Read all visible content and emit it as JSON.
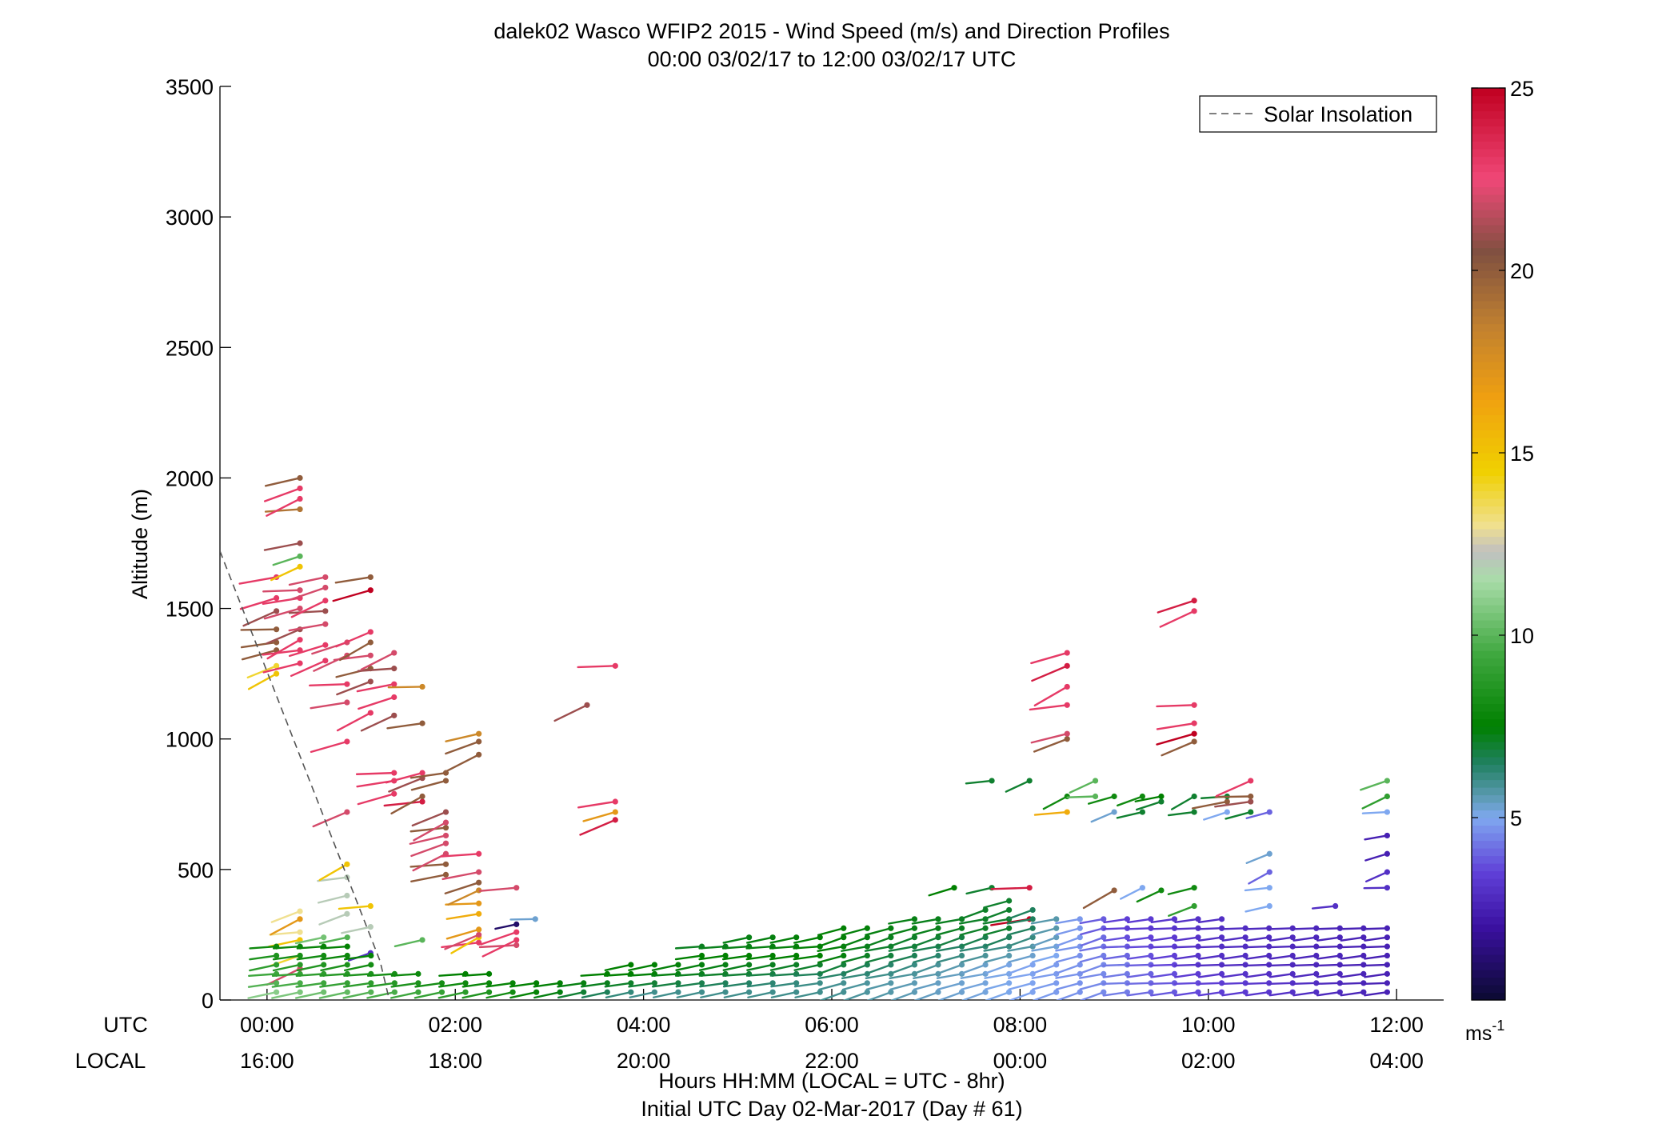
{
  "chart_data": {
    "type": "scatter",
    "title": "dalek02 Wasco WFIP2 2015 - Wind Speed (m/s) and Direction Profiles",
    "subtitle": "00:00 03/02/17 to 12:00 03/02/17  UTC",
    "ylabel": "Altitude (m)",
    "xlabel": "Hours HH:MM  (LOCAL = UTC - 8hr)",
    "xlabel2": "Initial UTC Day 02-Mar-2017 (Day # 61)",
    "xlim": [
      0,
      12
    ],
    "ylim": [
      0,
      3500
    ],
    "yticks": [
      0,
      500,
      1000,
      1500,
      2000,
      2500,
      3000,
      3500
    ],
    "xticks": [
      0,
      2,
      4,
      6,
      8,
      10,
      12
    ],
    "utc_label": "UTC",
    "local_label": "LOCAL",
    "utc_ticks": [
      "00:00",
      "02:00",
      "04:00",
      "06:00",
      "08:00",
      "10:00",
      "12:00"
    ],
    "local_ticks": [
      "16:00",
      "18:00",
      "20:00",
      "22:00",
      "00:00",
      "02:00",
      "04:00"
    ],
    "legend": {
      "label": "Solar Insolation",
      "placement": "top-right"
    },
    "solar_insolation": {
      "x": [
        -0.5,
        1.2,
        1.3
      ],
      "y": [
        1720,
        150,
        0
      ]
    },
    "colorbar": {
      "min": 0,
      "max": 25,
      "ticks": [
        5,
        10,
        15,
        20,
        25
      ],
      "unit": "ms",
      "unit_exp": "-1",
      "stops": [
        {
          "v": 0,
          "c": "#0a0a30"
        },
        {
          "v": 2,
          "c": "#3a10a0"
        },
        {
          "v": 3.5,
          "c": "#6040d8"
        },
        {
          "v": 5,
          "c": "#7fa8f0"
        },
        {
          "v": 5.6,
          "c": "#5a9ab0"
        },
        {
          "v": 6.5,
          "c": "#208060"
        },
        {
          "v": 7.5,
          "c": "#008000"
        },
        {
          "v": 9.5,
          "c": "#40a840"
        },
        {
          "v": 11.5,
          "c": "#a8dca8"
        },
        {
          "v": 12.3,
          "c": "#c0c0c0"
        },
        {
          "v": 13,
          "c": "#f0e090"
        },
        {
          "v": 14.5,
          "c": "#f0d000"
        },
        {
          "v": 16.5,
          "c": "#f0a010"
        },
        {
          "v": 18.5,
          "c": "#c08030"
        },
        {
          "v": 20.5,
          "c": "#805040"
        },
        {
          "v": 22.5,
          "c": "#f04878"
        },
        {
          "v": 25,
          "c": "#c00020"
        }
      ]
    },
    "upper_profiles": [
      {
        "x": 0.1,
        "pts": [
          [
            1250,
            15
          ],
          [
            1280,
            14
          ],
          [
            1340,
            20
          ],
          [
            1370,
            20
          ],
          [
            1420,
            20
          ],
          [
            1490,
            21
          ],
          [
            1540,
            23
          ],
          [
            1620,
            23
          ]
        ]
      },
      {
        "x": 0.35,
        "pts": [
          [
            120,
            22
          ],
          [
            170,
            14
          ],
          [
            230,
            15
          ],
          [
            260,
            13
          ],
          [
            310,
            17
          ],
          [
            340,
            13
          ],
          [
            1290,
            23
          ],
          [
            1340,
            23
          ],
          [
            1380,
            23
          ],
          [
            1420,
            21
          ],
          [
            1500,
            22
          ],
          [
            1540,
            23
          ],
          [
            1570,
            22
          ],
          [
            1660,
            15
          ],
          [
            1700,
            10
          ],
          [
            1750,
            21
          ],
          [
            1880,
            19
          ],
          [
            1920,
            23
          ],
          [
            1960,
            23
          ],
          [
            2000,
            20
          ]
        ]
      },
      {
        "x": 0.62,
        "pts": [
          [
            1300,
            23
          ],
          [
            1360,
            23
          ],
          [
            1440,
            22
          ],
          [
            1490,
            21
          ],
          [
            1530,
            23
          ],
          [
            1580,
            22
          ],
          [
            1620,
            22
          ]
        ]
      },
      {
        "x": 0.85,
        "pts": [
          [
            330,
            12
          ],
          [
            400,
            12
          ],
          [
            470,
            12
          ],
          [
            520,
            15
          ],
          [
            720,
            22
          ],
          [
            990,
            23
          ],
          [
            1140,
            22
          ],
          [
            1210,
            23
          ],
          [
            1320,
            22
          ],
          [
            1370,
            22
          ]
        ]
      },
      {
        "x": 1.1,
        "pts": [
          [
            180,
            3
          ],
          [
            280,
            12
          ],
          [
            360,
            15
          ],
          [
            1100,
            23
          ],
          [
            1220,
            21
          ],
          [
            1270,
            20
          ],
          [
            1320,
            22
          ],
          [
            1370,
            20
          ],
          [
            1410,
            23
          ],
          [
            1570,
            25
          ],
          [
            1620,
            20
          ]
        ]
      },
      {
        "x": 1.35,
        "pts": [
          [
            790,
            23
          ],
          [
            840,
            23
          ],
          [
            870,
            23
          ],
          [
            1090,
            21
          ],
          [
            1160,
            23
          ],
          [
            1210,
            23
          ],
          [
            1270,
            21
          ],
          [
            1330,
            22
          ]
        ]
      },
      {
        "x": 1.65,
        "pts": [
          [
            230,
            10
          ],
          [
            760,
            24
          ],
          [
            780,
            20
          ],
          [
            850,
            21
          ],
          [
            870,
            23
          ],
          [
            1060,
            20
          ],
          [
            1200,
            18
          ]
        ]
      },
      {
        "x": 1.9,
        "pts": [
          [
            480,
            20
          ],
          [
            520,
            20
          ],
          [
            560,
            22
          ],
          [
            600,
            22
          ],
          [
            630,
            22
          ],
          [
            660,
            20
          ],
          [
            680,
            22
          ],
          [
            720,
            21
          ],
          [
            840,
            20
          ],
          [
            870,
            20
          ]
        ]
      },
      {
        "x": 2.25,
        "pts": [
          [
            220,
            23
          ],
          [
            240,
            15
          ],
          [
            250,
            22
          ],
          [
            270,
            17
          ],
          [
            330,
            16
          ],
          [
            370,
            17
          ],
          [
            420,
            18
          ],
          [
            450,
            20
          ],
          [
            490,
            22
          ],
          [
            560,
            23
          ],
          [
            940,
            20
          ],
          [
            990,
            20
          ],
          [
            1020,
            18
          ]
        ]
      },
      {
        "x": 2.65,
        "pts": [
          [
            210,
            22
          ],
          [
            230,
            23
          ],
          [
            260,
            23
          ],
          [
            290,
            1
          ],
          [
            430,
            22
          ]
        ]
      },
      {
        "x": 2.85,
        "pts": [
          [
            310,
            5.3
          ]
        ]
      },
      {
        "x": 3.4,
        "pts": [
          [
            1130,
            21
          ]
        ]
      },
      {
        "x": 3.7,
        "pts": [
          [
            690,
            24
          ],
          [
            720,
            17
          ],
          [
            760,
            23
          ],
          [
            1280,
            23
          ]
        ]
      },
      {
        "x": 7.3,
        "pts": [
          [
            430,
            7.5
          ]
        ]
      },
      {
        "x": 7.7,
        "pts": [
          [
            430,
            7
          ],
          [
            840,
            7
          ]
        ]
      },
      {
        "x": 8.1,
        "pts": [
          [
            310,
            25
          ],
          [
            430,
            24
          ],
          [
            840,
            7
          ]
        ]
      },
      {
        "x": 8.5,
        "pts": [
          [
            720,
            16
          ],
          [
            780,
            8
          ],
          [
            1000,
            20
          ],
          [
            1020,
            22
          ],
          [
            1130,
            23
          ],
          [
            1200,
            23
          ],
          [
            1280,
            24
          ],
          [
            1330,
            23
          ]
        ]
      },
      {
        "x": 8.8,
        "pts": [
          [
            780,
            10
          ],
          [
            840,
            10
          ]
        ]
      },
      {
        "x": 9.0,
        "pts": [
          [
            420,
            20
          ],
          [
            720,
            5.3
          ],
          [
            780,
            8
          ]
        ]
      },
      {
        "x": 9.3,
        "pts": [
          [
            430,
            5
          ],
          [
            780,
            8
          ],
          [
            720,
            7
          ]
        ]
      },
      {
        "x": 9.5,
        "pts": [
          [
            420,
            8
          ],
          [
            760,
            7
          ],
          [
            780,
            7.5
          ]
        ]
      },
      {
        "x": 9.85,
        "pts": [
          [
            360,
            9
          ],
          [
            430,
            8
          ],
          [
            720,
            7
          ],
          [
            780,
            7
          ],
          [
            990,
            20
          ],
          [
            1020,
            25
          ],
          [
            1060,
            23
          ],
          [
            1130,
            23
          ],
          [
            1490,
            23
          ],
          [
            1530,
            24
          ]
        ]
      },
      {
        "x": 10.2,
        "pts": [
          [
            720,
            5
          ],
          [
            760,
            20
          ],
          [
            780,
            7
          ]
        ]
      },
      {
        "x": 10.45,
        "pts": [
          [
            720,
            7
          ],
          [
            760,
            21
          ],
          [
            780,
            20
          ],
          [
            840,
            23
          ]
        ]
      },
      {
        "x": 10.65,
        "pts": [
          [
            360,
            5
          ],
          [
            430,
            5
          ],
          [
            490,
            4
          ],
          [
            560,
            5.3
          ],
          [
            720,
            4
          ]
        ]
      },
      {
        "x": 11.35,
        "pts": [
          [
            360,
            3
          ]
        ]
      },
      {
        "x": 11.9,
        "pts": [
          [
            430,
            3
          ],
          [
            490,
            3
          ],
          [
            560,
            2.5
          ],
          [
            630,
            2.5
          ],
          [
            720,
            5
          ],
          [
            780,
            9
          ],
          [
            840,
            10
          ]
        ]
      }
    ],
    "low_level_columns": {
      "x_start": 0.1,
      "x_end": 11.9,
      "count": 48,
      "h_min": 30,
      "h_step": 35,
      "top_heights": [
        230,
        230,
        240,
        250,
        180,
        120,
        100,
        80,
        100,
        100,
        90,
        90,
        90,
        90,
        110,
        140,
        150,
        150,
        220,
        230,
        240,
        250,
        260,
        270,
        290,
        300,
        300,
        310,
        320,
        330,
        360,
        380,
        370,
        340,
        330,
        330,
        330,
        330,
        320,
        310,
        310,
        300,
        300,
        290,
        290,
        290,
        280,
        280
      ],
      "speed_profile": [
        {
          "x": 0,
          "speeds": [
            11,
            10,
            9.5,
            9,
            8.5,
            8,
            12
          ]
        },
        {
          "x": 2,
          "speeds": [
            9,
            8,
            7.5,
            7.5,
            7
          ]
        },
        {
          "x": 4,
          "speeds": [
            6,
            7,
            7.5,
            7.5,
            7.5,
            7
          ]
        },
        {
          "x": 6,
          "speeds": [
            6,
            6,
            6.5,
            7,
            7.5,
            7.5,
            7.5,
            7.5
          ]
        },
        {
          "x": 8,
          "speeds": [
            5,
            5,
            5,
            5,
            5.5,
            6,
            6.5,
            7,
            7
          ]
        },
        {
          "x": 9,
          "speeds": [
            4.5,
            4.5,
            4.5,
            4.5,
            4.2,
            4,
            3.8,
            3.5
          ]
        },
        {
          "x": 10,
          "speeds": [
            3.5,
            3.5,
            3.2,
            3,
            3,
            3,
            3,
            3
          ]
        },
        {
          "x": 12,
          "speeds": [
            2.5,
            2.5,
            2.5,
            2.5,
            2.5,
            2.5,
            2.5,
            2.5
          ]
        }
      ]
    }
  }
}
